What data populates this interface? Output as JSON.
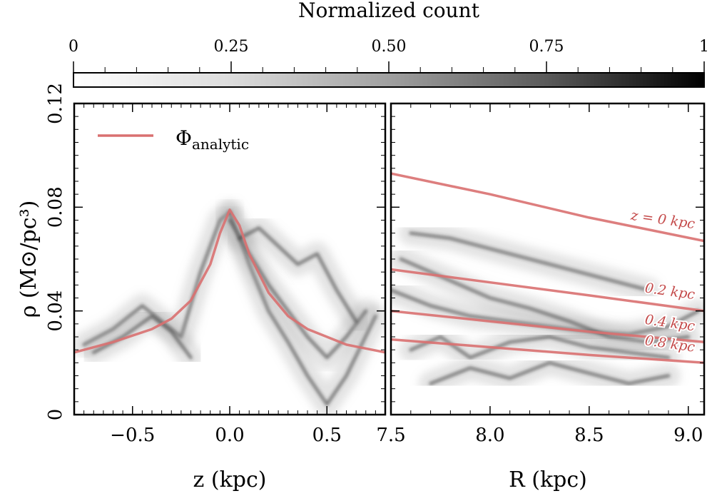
{
  "chart_data": {
    "type": "heatmap",
    "colorbar": {
      "title": "Normalized count",
      "tick_labels": [
        "0",
        "0.25",
        "0.50",
        "0.75",
        "1"
      ],
      "tick_values": [
        0,
        0.25,
        0.5,
        0.75,
        1
      ],
      "colormap": "gray_r"
    },
    "ylabel": "ρ (M⊙/pc³)",
    "ylim": [
      0,
      0.12
    ],
    "y_ticks": [
      0,
      0.04,
      0.08,
      0.12
    ],
    "y_tick_labels": [
      "0",
      "0.04",
      "0.08",
      "0.12"
    ],
    "panels": [
      {
        "name": "left",
        "xlabel": "z (kpc)",
        "xlim": [
          -0.8,
          0.8
        ],
        "x_ticks": [
          -0.5,
          0.0,
          0.5
        ],
        "x_tick_labels": [
          "−0.5",
          "0.0",
          "0.5"
        ],
        "legend": {
          "label": "Φ",
          "subscript": "analytic",
          "color": "#d97070"
        },
        "series": [
          {
            "name": "Φ_analytic",
            "color": "#d97070",
            "x": [
              -0.8,
              -0.6,
              -0.4,
              -0.3,
              -0.2,
              -0.1,
              -0.05,
              0.0,
              0.05,
              0.1,
              0.2,
              0.3,
              0.4,
              0.6,
              0.8
            ],
            "y": [
              0.024,
              0.028,
              0.033,
              0.037,
              0.044,
              0.058,
              0.07,
              0.079,
              0.073,
              0.062,
              0.047,
              0.038,
              0.033,
              0.027,
              0.024
            ]
          }
        ],
        "density_ridges": [
          {
            "x": [
              -0.75,
              -0.6,
              -0.45,
              -0.35,
              -0.25,
              -0.15,
              -0.05,
              0.0
            ],
            "y": [
              0.027,
              0.033,
              0.042,
              0.036,
              0.03,
              0.055,
              0.075,
              0.078
            ]
          },
          {
            "x": [
              -0.7,
              -0.55,
              -0.4,
              -0.3,
              -0.2
            ],
            "y": [
              0.024,
              0.03,
              0.038,
              0.032,
              0.022
            ]
          },
          {
            "x": [
              0.0,
              0.1,
              0.2,
              0.3,
              0.4,
              0.5,
              0.6,
              0.75
            ],
            "y": [
              0.078,
              0.058,
              0.04,
              0.028,
              0.015,
              0.004,
              0.015,
              0.038
            ]
          },
          {
            "x": [
              0.0,
              0.1,
              0.2,
              0.3,
              0.4,
              0.5,
              0.6,
              0.7
            ],
            "y": [
              0.075,
              0.062,
              0.05,
              0.04,
              0.03,
              0.022,
              0.03,
              0.04
            ]
          },
          {
            "x": [
              0.05,
              0.15,
              0.25,
              0.35,
              0.45,
              0.55,
              0.65
            ],
            "y": [
              0.068,
              0.072,
              0.065,
              0.058,
              0.062,
              0.048,
              0.036
            ]
          }
        ]
      },
      {
        "name": "right",
        "xlabel": "R (kpc)",
        "xlim": [
          7.5,
          9.08
        ],
        "x_ticks": [
          7.5,
          8.0,
          8.5,
          9.0
        ],
        "x_tick_labels": [
          "7.5",
          "8.0",
          "8.5",
          "9.0"
        ],
        "series": [
          {
            "name": "z = 0 kpc",
            "label": "z = 0 kpc",
            "color": "#d97070",
            "x": [
              7.5,
              8.0,
              8.5,
              9.08
            ],
            "y": [
              0.093,
              0.085,
              0.076,
              0.067
            ]
          },
          {
            "name": "0.2 kpc",
            "label": "0.2 kpc",
            "color": "#d97070",
            "x": [
              7.5,
              8.0,
              8.5,
              9.08
            ],
            "y": [
              0.056,
              0.051,
              0.046,
              0.04
            ]
          },
          {
            "name": "0.4 kpc",
            "label": "0.4 kpc",
            "color": "#d97070",
            "x": [
              7.5,
              8.0,
              8.5,
              9.08
            ],
            "y": [
              0.04,
              0.036,
              0.032,
              0.028
            ]
          },
          {
            "name": "0.8 kpc",
            "label": "0.8 kpc",
            "color": "#d97070",
            "x": [
              7.5,
              8.0,
              8.5,
              9.08
            ],
            "y": [
              0.029,
              0.026,
              0.023,
              0.02
            ]
          }
        ],
        "density_ridges": [
          {
            "x": [
              7.5,
              7.7,
              7.9,
              8.1,
              8.3,
              8.5,
              8.7,
              8.9,
              9.05
            ],
            "y": [
              0.048,
              0.042,
              0.038,
              0.036,
              0.034,
              0.032,
              0.031,
              0.034,
              0.04
            ]
          },
          {
            "x": [
              7.55,
              7.7,
              7.85,
              8.0,
              8.2,
              8.4,
              8.6,
              8.8,
              9.0
            ],
            "y": [
              0.06,
              0.055,
              0.05,
              0.045,
              0.041,
              0.036,
              0.03,
              0.028,
              0.03
            ]
          },
          {
            "x": [
              7.6,
              7.75,
              7.9,
              8.1,
              8.3,
              8.5,
              8.7,
              8.9
            ],
            "y": [
              0.025,
              0.03,
              0.022,
              0.028,
              0.03,
              0.026,
              0.024,
              0.022
            ]
          },
          {
            "x": [
              7.6,
              7.8,
              8.0,
              8.2,
              8.4,
              8.6,
              8.8
            ],
            "y": [
              0.07,
              0.068,
              0.064,
              0.06,
              0.056,
              0.052,
              0.048
            ]
          },
          {
            "x": [
              7.7,
              7.9,
              8.1,
              8.3,
              8.5,
              8.7,
              8.9
            ],
            "y": [
              0.012,
              0.018,
              0.014,
              0.02,
              0.016,
              0.012,
              0.015
            ]
          }
        ]
      }
    ]
  }
}
